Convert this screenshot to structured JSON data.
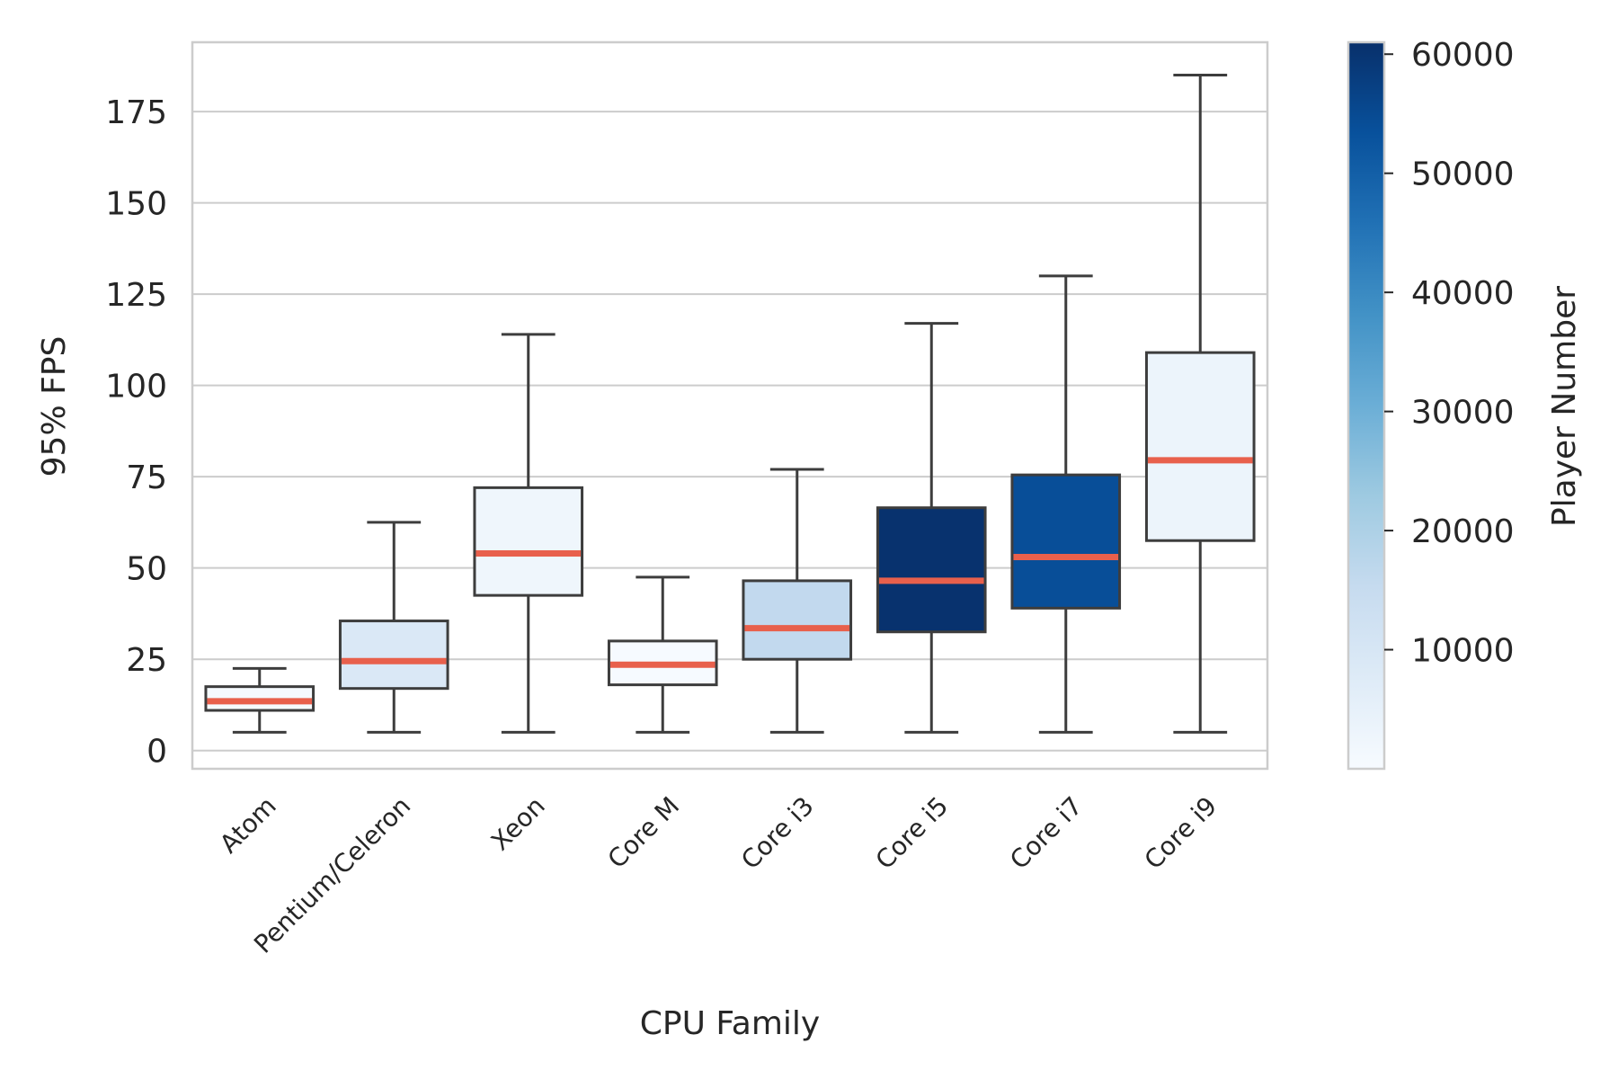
{
  "chart_data": {
    "type": "box",
    "xlabel": "CPU Family",
    "ylabel": "95% FPS",
    "ylim": [
      -5,
      194
    ],
    "yticks": [
      0,
      25,
      50,
      75,
      100,
      125,
      150,
      175
    ],
    "grid": true,
    "categories": [
      "Atom",
      "Pentium/Celeron",
      "Xeon",
      "Core M",
      "Core i3",
      "Core i5",
      "Core i7",
      "Core i9"
    ],
    "boxes": [
      {
        "category": "Atom",
        "whisker_low": 5,
        "q1": 11,
        "median": 13.5,
        "q3": 17.5,
        "whisker_high": 22.5,
        "player_number": 500
      },
      {
        "category": "Pentium/Celeron",
        "whisker_low": 5,
        "q1": 17,
        "median": 24.5,
        "q3": 35.5,
        "whisker_high": 62.5,
        "player_number": 9000
      },
      {
        "category": "Xeon",
        "whisker_low": 5,
        "q1": 42.5,
        "median": 54,
        "q3": 72,
        "whisker_high": 114,
        "player_number": 2500
      },
      {
        "category": "Core M",
        "whisker_low": 5,
        "q1": 18,
        "median": 23.5,
        "q3": 30,
        "whisker_high": 47.5,
        "player_number": 300
      },
      {
        "category": "Core i3",
        "whisker_low": 5,
        "q1": 25,
        "median": 33.5,
        "q3": 46.5,
        "whisker_high": 77,
        "player_number": 16000
      },
      {
        "category": "Core i5",
        "whisker_low": 5,
        "q1": 32.5,
        "median": 46.5,
        "q3": 66.5,
        "whisker_high": 117,
        "player_number": 60500
      },
      {
        "category": "Core i7",
        "whisker_low": 5,
        "q1": 39,
        "median": 53,
        "q3": 75.5,
        "whisker_high": 130,
        "player_number": 54000
      },
      {
        "category": "Core i9",
        "whisker_low": 5,
        "q1": 57.5,
        "median": 79.5,
        "q3": 109,
        "whisker_high": 185,
        "player_number": 3500
      }
    ],
    "colors": {
      "median_line": "#e8604c",
      "box_edge": "#3d3d3d",
      "grid": "#cccccc",
      "frame": "#cccccc",
      "colormap": "Blues"
    },
    "colorbar": {
      "label": "Player Number",
      "min": 0,
      "max": 61000,
      "ticks": [
        10000,
        20000,
        30000,
        40000,
        50000,
        60000
      ]
    }
  }
}
